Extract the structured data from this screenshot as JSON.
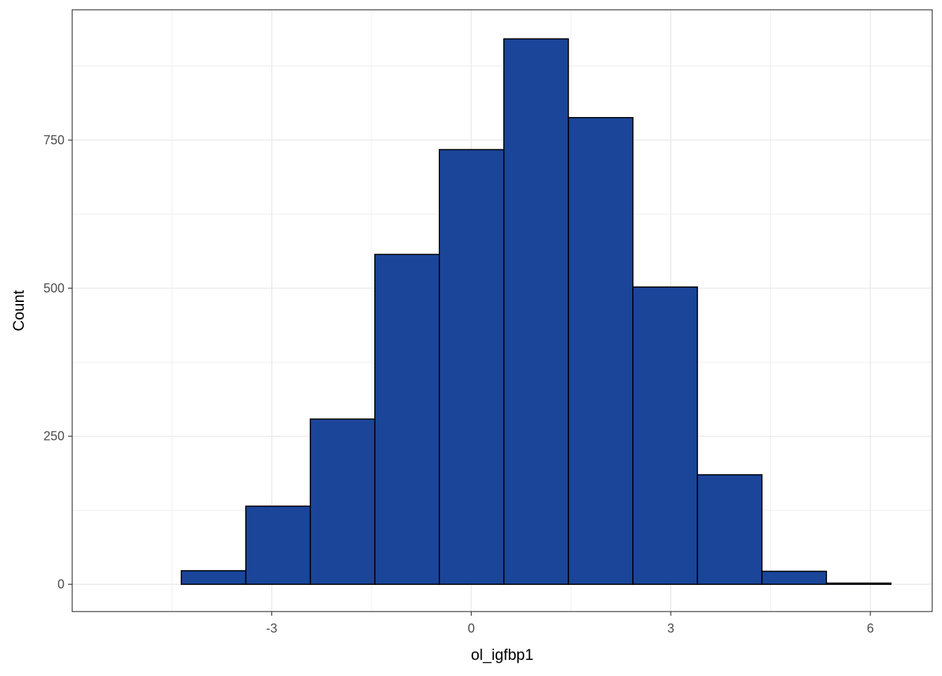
{
  "chart_data": {
    "type": "histogram",
    "title": "",
    "xlabel": "ol_igfbp1",
    "ylabel": "Count",
    "bin_width": 0.97,
    "bins": [
      {
        "x_start": -5.33,
        "x_end": -4.36,
        "count": 0
      },
      {
        "x_start": -4.36,
        "x_end": -3.39,
        "count": 23
      },
      {
        "x_start": -3.39,
        "x_end": -2.42,
        "count": 132
      },
      {
        "x_start": -2.42,
        "x_end": -1.45,
        "count": 279
      },
      {
        "x_start": -1.45,
        "x_end": -0.48,
        "count": 557
      },
      {
        "x_start": -0.48,
        "x_end": 0.49,
        "count": 734
      },
      {
        "x_start": 0.49,
        "x_end": 1.46,
        "count": 921
      },
      {
        "x_start": 1.46,
        "x_end": 2.43,
        "count": 788
      },
      {
        "x_start": 2.43,
        "x_end": 3.4,
        "count": 502
      },
      {
        "x_start": 3.4,
        "x_end": 4.37,
        "count": 185
      },
      {
        "x_start": 4.37,
        "x_end": 5.34,
        "count": 22
      },
      {
        "x_start": 5.34,
        "x_end": 6.31,
        "count": 2
      }
    ],
    "xlim": [
      -6.0,
      6.93
    ],
    "ylim": [
      -46,
      970
    ],
    "x_ticks": [
      -3,
      0,
      3,
      6
    ],
    "x_tick_labels": [
      "-3",
      "0",
      "3",
      "6"
    ],
    "x_minor_ticks": [
      -4.5,
      -1.5,
      1.5,
      4.5
    ],
    "y_ticks": [
      0,
      250,
      500,
      750
    ],
    "y_tick_labels": [
      "0",
      "250",
      "500",
      "750"
    ],
    "y_minor_ticks": [
      125,
      375,
      625,
      875
    ],
    "grid": true,
    "colors": {
      "bar_fill": "#1a4599",
      "bar_outline": "#000000",
      "grid": "#ebebeb",
      "panel_border": "#333333",
      "tick_text": "#4d4d4d"
    }
  }
}
